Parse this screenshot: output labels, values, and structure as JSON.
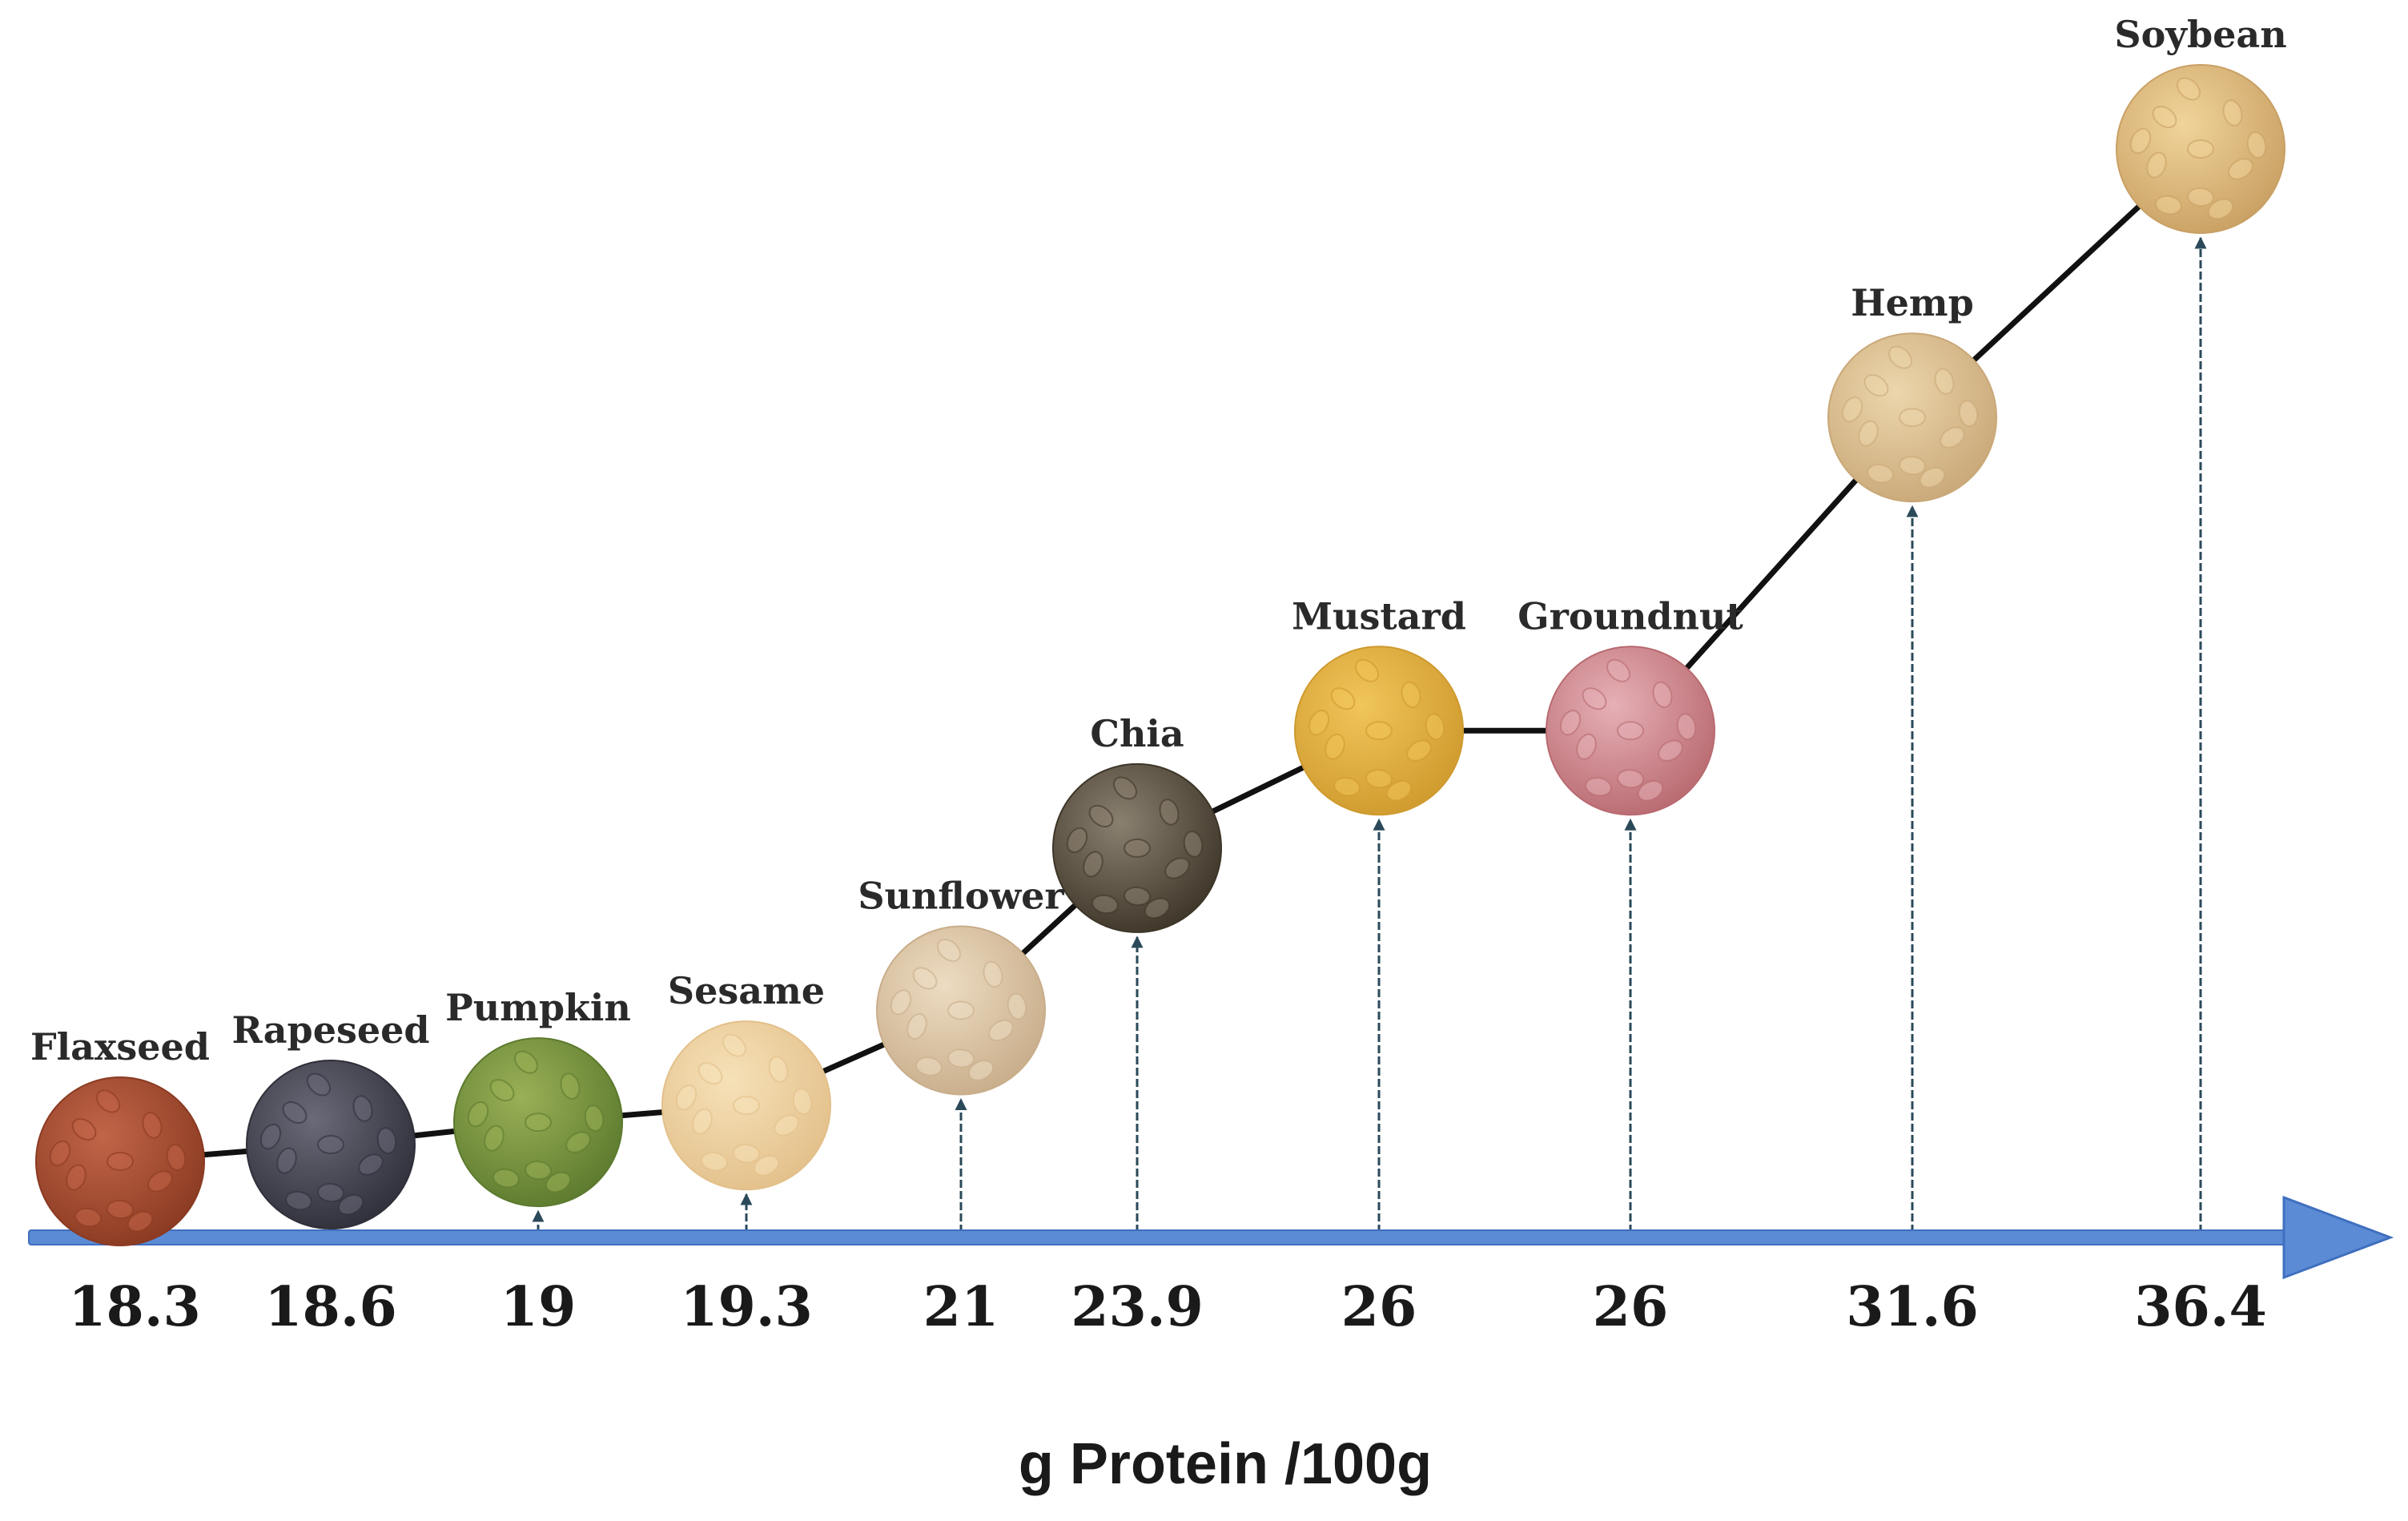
{
  "chart_data": {
    "type": "line",
    "xlabel": "g Protein /100g",
    "series": [
      {
        "points": [
          {
            "name": "Flaxseed",
            "value": 18.3,
            "label": "18.3",
            "seed": "flax-seed-icon"
          },
          {
            "name": "Rapeseed",
            "value": 18.6,
            "label": "18.6",
            "seed": "rapeseed-icon"
          },
          {
            "name": "Pumpkin",
            "value": 19,
            "label": "19",
            "seed": "pumpkin-seed-icon"
          },
          {
            "name": "Sesame",
            "value": 19.3,
            "label": "19.3",
            "seed": "sesame-seed-icon"
          },
          {
            "name": "Sunflower",
            "value": 21,
            "label": "21",
            "seed": "sunflower-seed-icon"
          },
          {
            "name": "Chia",
            "value": 23.9,
            "label": "23.9",
            "seed": "chia-seed-icon"
          },
          {
            "name": "Mustard",
            "value": 26,
            "label": "26",
            "seed": "mustard-seed-icon"
          },
          {
            "name": "Groundnut",
            "value": 26,
            "label": "26",
            "seed": "groundnut-icon"
          },
          {
            "name": "Hemp",
            "value": 31.6,
            "label": "31.6",
            "seed": "hemp-seed-icon"
          },
          {
            "name": "Soybean",
            "value": 36.4,
            "label": "36.4",
            "seed": "soybean-icon"
          }
        ]
      }
    ],
    "colors": {
      "axis": "#5b8bd4",
      "axis_dark": "#3f6fbf",
      "curve": "#111111",
      "stem": "#2a4a5a",
      "seeds": [
        "#8a3a22",
        "#2f2f3a",
        "#5c7a2e",
        "#e3c08a",
        "#c8ad8a",
        "#3d3528",
        "#cf9a2e",
        "#b86a70",
        "#c9a878",
        "#c9a064"
      ],
      "seeds_hi": [
        "#c26548",
        "#6a6a78",
        "#9ab056",
        "#f6e1b8",
        "#eddcc2",
        "#8a8070",
        "#f0c55a",
        "#e6b0b6",
        "#ecd6ac",
        "#f0d49a"
      ]
    }
  }
}
